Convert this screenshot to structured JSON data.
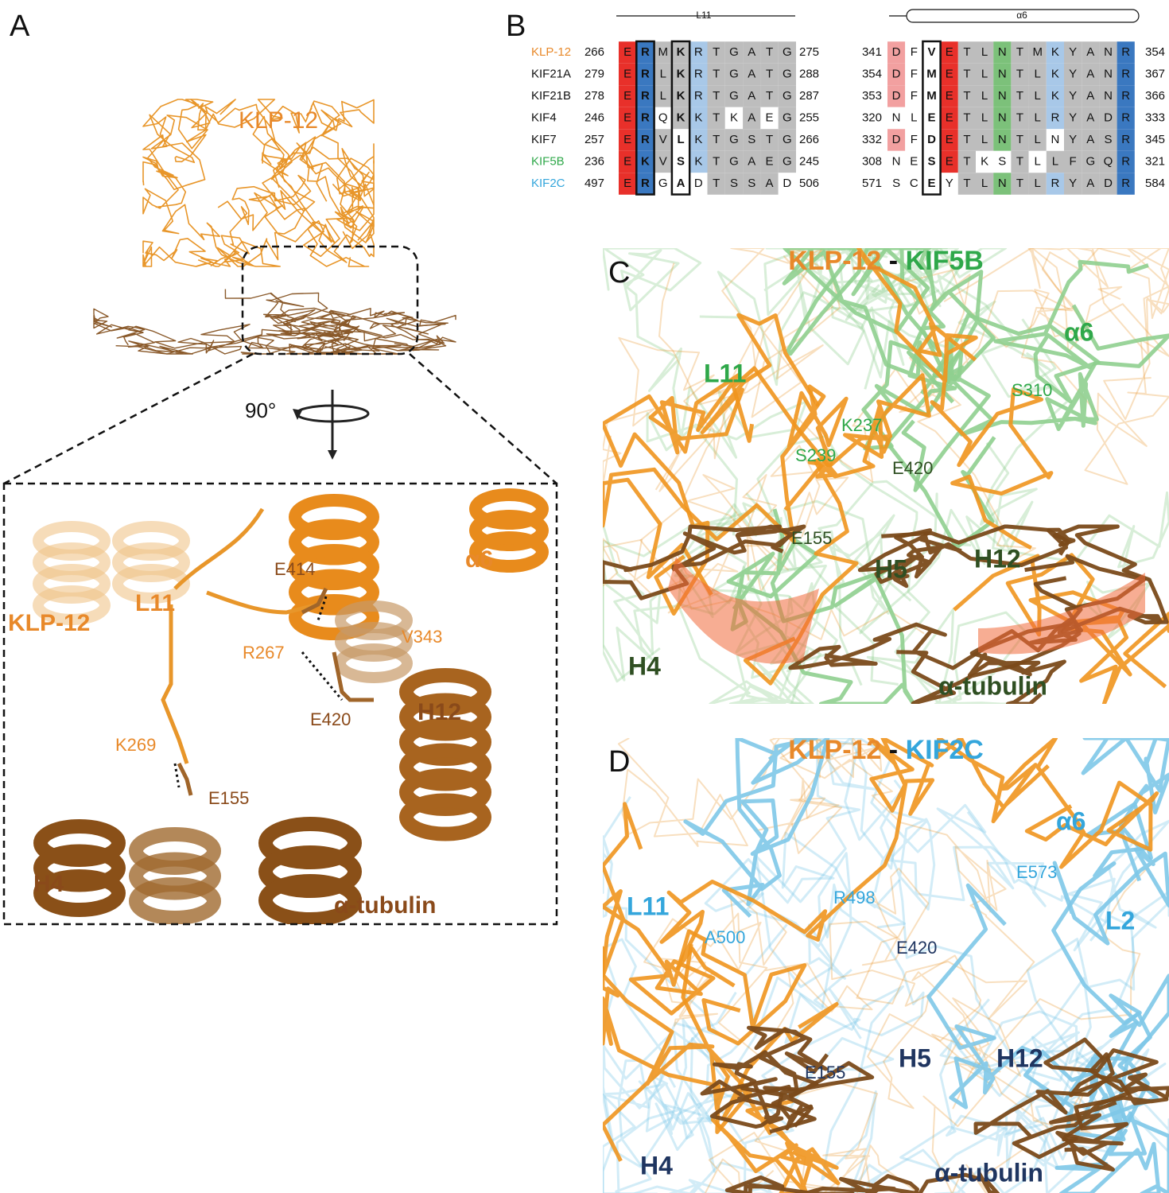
{
  "panel_labels": [
    "A",
    "B",
    "C",
    "D"
  ],
  "panel_a": {
    "title": "KLP-12",
    "rotation": "90°",
    "labels": [
      "L11",
      "KLP-12",
      "E414",
      "α6",
      "R267",
      "V343",
      "H12",
      "E420",
      "K269",
      "E155",
      "H4",
      "α-tubulin"
    ]
  },
  "panel_b": {
    "l11_header": "L11",
    "a6_header": "α6",
    "rows": [
      {
        "name": "KLP-12",
        "start1": 266,
        "seq1": [
          "E",
          "R",
          "M",
          "K",
          "R",
          "T",
          "G",
          "A",
          "T",
          "G"
        ],
        "end1": 275,
        "start2": 341,
        "seq2": [
          "D",
          "F",
          "V",
          "E",
          "T",
          "L",
          "N",
          "T",
          "M",
          "K",
          "Y",
          "A",
          "N",
          "R"
        ],
        "end2": 354
      },
      {
        "name": "KIF21A",
        "start1": 279,
        "seq1": [
          "E",
          "R",
          "L",
          "K",
          "R",
          "T",
          "G",
          "A",
          "T",
          "G"
        ],
        "end1": 288,
        "start2": 354,
        "seq2": [
          "D",
          "F",
          "M",
          "E",
          "T",
          "L",
          "N",
          "T",
          "L",
          "K",
          "Y",
          "A",
          "N",
          "R"
        ],
        "end2": 367
      },
      {
        "name": "KIF21B",
        "start1": 278,
        "seq1": [
          "E",
          "R",
          "L",
          "K",
          "R",
          "T",
          "G",
          "A",
          "T",
          "G"
        ],
        "end1": 287,
        "start2": 353,
        "seq2": [
          "D",
          "F",
          "M",
          "E",
          "T",
          "L",
          "N",
          "T",
          "L",
          "K",
          "Y",
          "A",
          "N",
          "R"
        ],
        "end2": 366
      },
      {
        "name": "KIF4",
        "start1": 246,
        "seq1": [
          "E",
          "R",
          "Q",
          "K",
          "K",
          "T",
          "K",
          "A",
          "E",
          "G"
        ],
        "end1": 255,
        "start2": 320,
        "seq2": [
          "N",
          "L",
          "E",
          "E",
          "T",
          "L",
          "N",
          "T",
          "L",
          "R",
          "Y",
          "A",
          "D",
          "R"
        ],
        "end2": 333
      },
      {
        "name": "KIF7",
        "start1": 257,
        "seq1": [
          "E",
          "R",
          "V",
          "L",
          "K",
          "T",
          "G",
          "S",
          "T",
          "G"
        ],
        "end1": 266,
        "start2": 332,
        "seq2": [
          "D",
          "F",
          "D",
          "E",
          "T",
          "L",
          "N",
          "T",
          "L",
          "N",
          "Y",
          "A",
          "S",
          "R"
        ],
        "end2": 345
      },
      {
        "name": "KIF5B",
        "start1": 236,
        "seq1": [
          "E",
          "K",
          "V",
          "S",
          "K",
          "T",
          "G",
          "A",
          "E",
          "G"
        ],
        "end1": 245,
        "start2": 308,
        "seq2": [
          "N",
          "E",
          "S",
          "E",
          "T",
          "K",
          "S",
          "T",
          "L",
          "L",
          "F",
          "G",
          "Q",
          "R"
        ],
        "end2": 321
      },
      {
        "name": "KIF2C",
        "start1": 497,
        "seq1": [
          "E",
          "R",
          "G",
          "A",
          "D",
          "T",
          "S",
          "S",
          "A",
          "D"
        ],
        "end1": 506,
        "start2": 571,
        "seq2": [
          "S",
          "C",
          "E",
          "Y",
          "T",
          "L",
          "N",
          "T",
          "L",
          "R",
          "Y",
          "A",
          "D",
          "R"
        ],
        "end2": 584
      }
    ]
  },
  "panel_c": {
    "title_left": "KLP-12",
    "title_sep": "-",
    "title_right": "KIF5B",
    "labels": [
      "α6",
      "L11",
      "S310",
      "K237",
      "S239",
      "E420",
      "E155",
      "H5",
      "H12",
      "H4",
      "α-tubulin"
    ]
  },
  "panel_d": {
    "title_left": "KLP-12",
    "title_sep": "-",
    "title_right": "KIF2C",
    "labels": [
      "α6",
      "E573",
      "L11",
      "R498",
      "A500",
      "E420",
      "L2",
      "E155",
      "H5",
      "H12",
      "H4",
      "α-tubulin"
    ]
  }
}
